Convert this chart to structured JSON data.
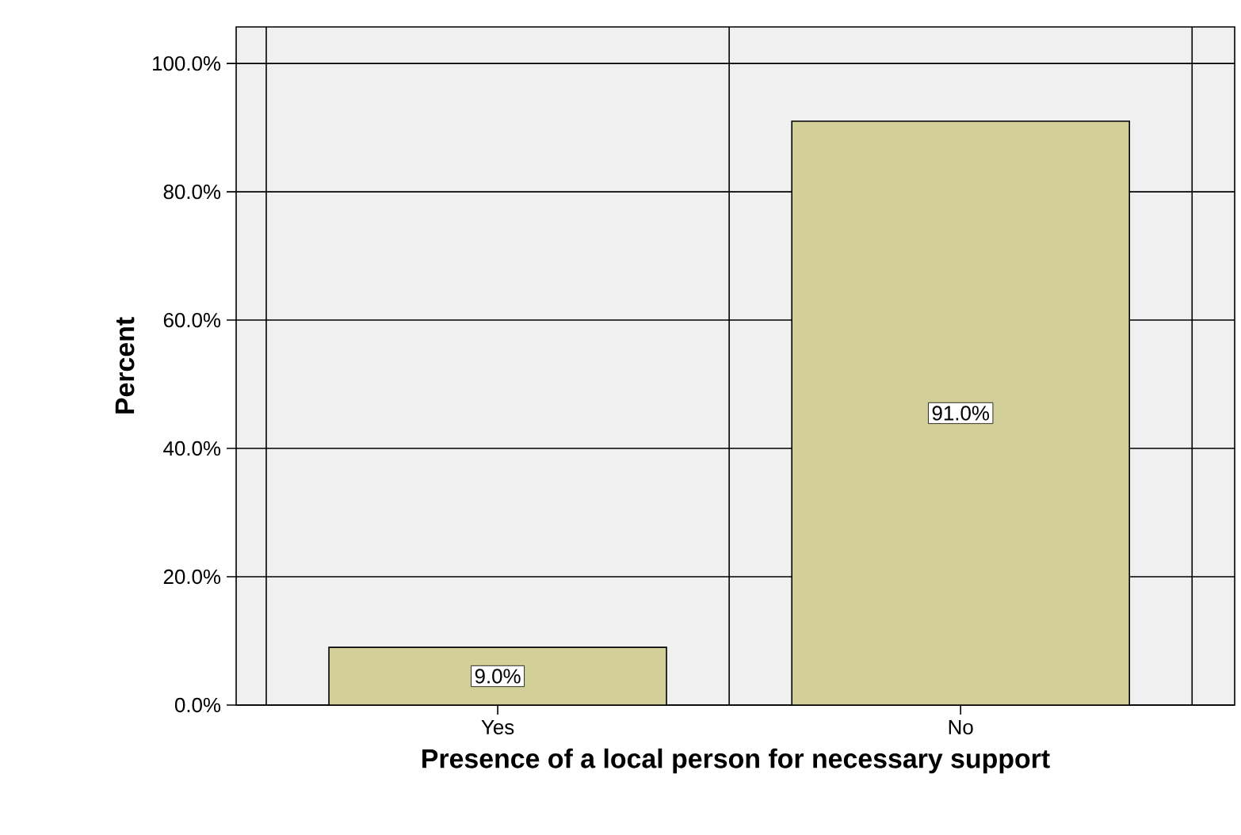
{
  "chart_data": {
    "type": "bar",
    "xlabel": "Presence of a local person for necessary support",
    "ylabel": "Percent",
    "categories": [
      "Yes",
      "No"
    ],
    "values": [
      9.0,
      91.0
    ],
    "color": "#d3cf98",
    "value_labels": [
      "9.0%",
      "91.0%"
    ],
    "ylim": [
      0,
      105.7
    ],
    "yticks": [
      {
        "value": 0,
        "label": "0.0%"
      },
      {
        "value": 20,
        "label": "20.0%"
      },
      {
        "value": 40,
        "label": "40.0%"
      },
      {
        "value": 60,
        "label": "60.0%"
      },
      {
        "value": 80,
        "label": "80.0%"
      },
      {
        "value": 100,
        "label": "100.0%"
      }
    ],
    "grid": true
  }
}
